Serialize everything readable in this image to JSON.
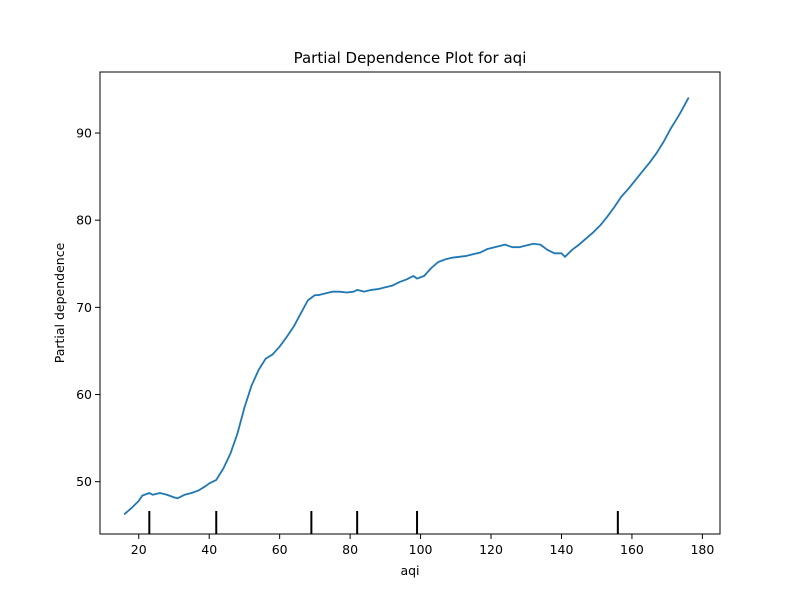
{
  "chart_data": {
    "type": "line",
    "title": "Partial Dependence Plot for aqi",
    "xlabel": "aqi",
    "ylabel": "Partial dependence",
    "xlim": [
      9,
      185
    ],
    "ylim": [
      44,
      97
    ],
    "xticks": [
      20,
      40,
      60,
      80,
      100,
      120,
      140,
      160,
      180
    ],
    "yticks": [
      50,
      60,
      70,
      80,
      90
    ],
    "grid": false,
    "legend": "none",
    "line_color": "#1f77b4",
    "series": [
      {
        "x": [
          16,
          18,
          20,
          21,
          23,
          24,
          25,
          26,
          28,
          30,
          31,
          33,
          35,
          37,
          39,
          40,
          42,
          44,
          46,
          48,
          50,
          52,
          54,
          56,
          58,
          60,
          62,
          64,
          66,
          68,
          70,
          71,
          73,
          75,
          77,
          79,
          81,
          82,
          84,
          86,
          88,
          90,
          92,
          94,
          96,
          98,
          99,
          101,
          103,
          105,
          107,
          109,
          111,
          113,
          115,
          117,
          119,
          121,
          123,
          124,
          126,
          128,
          130,
          132,
          134,
          136,
          138,
          140,
          141,
          143,
          145,
          147,
          149,
          151,
          153,
          155,
          157,
          159,
          161,
          163,
          165,
          167,
          169,
          171,
          173,
          174,
          176
        ],
        "y": [
          46.3,
          47.0,
          47.8,
          48.4,
          48.7,
          48.5,
          48.6,
          48.7,
          48.5,
          48.2,
          48.1,
          48.5,
          48.7,
          49.0,
          49.5,
          49.8,
          50.2,
          51.5,
          53.2,
          55.5,
          58.5,
          61.0,
          62.8,
          64.1,
          64.6,
          65.5,
          66.6,
          67.8,
          69.3,
          70.8,
          71.4,
          71.4,
          71.6,
          71.8,
          71.8,
          71.7,
          71.8,
          72.0,
          71.8,
          72.0,
          72.1,
          72.3,
          72.5,
          72.9,
          73.2,
          73.6,
          73.3,
          73.6,
          74.5,
          75.2,
          75.5,
          75.7,
          75.8,
          75.9,
          76.1,
          76.3,
          76.7,
          76.9,
          77.1,
          77.2,
          76.9,
          76.9,
          77.1,
          77.3,
          77.2,
          76.6,
          76.2,
          76.2,
          75.8,
          76.6,
          77.2,
          77.9,
          78.6,
          79.4,
          80.4,
          81.5,
          82.7,
          83.6,
          84.6,
          85.6,
          86.6,
          87.7,
          89.0,
          90.5,
          91.8,
          92.5,
          94.0
        ]
      }
    ],
    "rug_x": [
      23,
      42,
      69,
      82,
      99,
      156
    ]
  }
}
